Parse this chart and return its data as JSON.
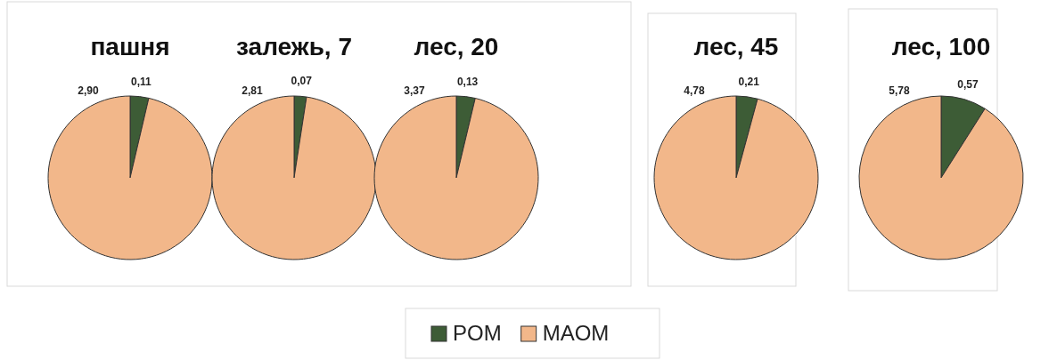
{
  "chart_data": [
    {
      "type": "pie",
      "title": "пашня",
      "values": [
        0.11,
        2.9
      ],
      "value_labels": [
        "0,11",
        "2,90"
      ],
      "colors": [
        "#3d5c36",
        "#f2b78a"
      ]
    },
    {
      "type": "pie",
      "title": "залежь, 7",
      "values": [
        0.07,
        2.81
      ],
      "value_labels": [
        "0,07",
        "2,81"
      ],
      "colors": [
        "#3d5c36",
        "#f2b78a"
      ]
    },
    {
      "type": "pie",
      "title": "лес, 20",
      "categories": [
        "POM",
        "MAOM"
      ],
      "values": [
        0.13,
        3.37
      ],
      "value_labels": [
        "0,13",
        "3,37"
      ],
      "colors": [
        "#3d5c36",
        "#f2b78a"
      ],
      "legend": "bottom"
    },
    {
      "type": "pie",
      "title": "лес, 45",
      "values": [
        0.21,
        4.78
      ],
      "value_labels": [
        "0,21",
        "4,78"
      ],
      "colors": [
        "#3d5c36",
        "#f2b78a"
      ]
    },
    {
      "type": "pie",
      "title": "лес, 100",
      "values": [
        0.57,
        5.78
      ],
      "value_labels": [
        "0,57",
        "5,78"
      ],
      "colors": [
        "#3d5c36",
        "#f2b78a"
      ]
    }
  ]
}
